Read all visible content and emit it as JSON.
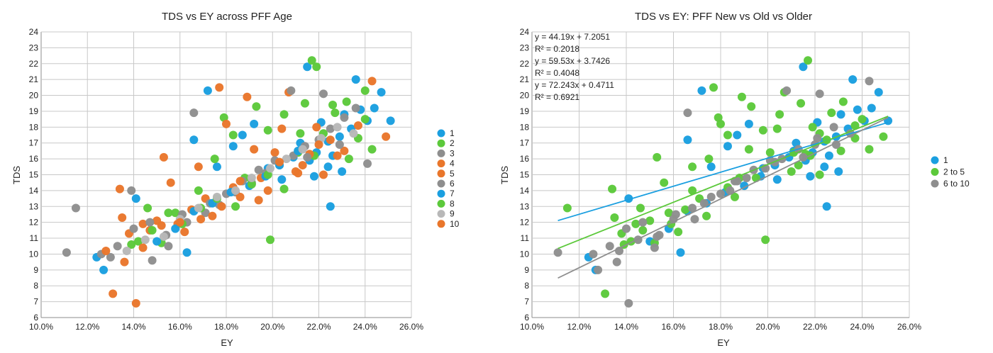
{
  "chart_data": [
    {
      "type": "scatter",
      "title": "TDS vs EY across PFF Age",
      "xlabel": "EY",
      "ylabel": "TDS",
      "xlim": [
        0.1,
        0.26
      ],
      "ylim": [
        6,
        24
      ],
      "x_ticks": [
        "10.0%",
        "12.0%",
        "14.0%",
        "16.0%",
        "18.0%",
        "20.0%",
        "22.0%",
        "24.0%",
        "26.0%"
      ],
      "y_ticks": [
        "6",
        "7",
        "8",
        "9",
        "10",
        "11",
        "12",
        "13",
        "14",
        "15",
        "16",
        "17",
        "18",
        "19",
        "20",
        "21",
        "22",
        "23",
        "24"
      ],
      "grid": true,
      "legend_position": "right",
      "series": [
        {
          "name": "1",
          "color": "#1a9fe0",
          "x": [
            0.124,
            0.127,
            0.141,
            0.163,
            0.166,
            0.172,
            0.176,
            0.183,
            0.187,
            0.192,
            0.198,
            0.204,
            0.209,
            0.212,
            0.216,
            0.219,
            0.221,
            0.224,
            0.226,
            0.229,
            0.231,
            0.234,
            0.238,
            0.241,
            0.247,
            0.251,
            0.215,
            0.225
          ],
          "y": [
            9.8,
            9.0,
            13.5,
            10.1,
            17.2,
            20.3,
            15.5,
            16.8,
            17.5,
            18.2,
            15.4,
            14.7,
            16.1,
            17.0,
            15.9,
            16.4,
            18.3,
            17.1,
            16.2,
            17.4,
            18.8,
            17.9,
            19.1,
            18.4,
            20.2,
            18.4,
            21.8,
            13.0
          ]
        },
        {
          "name": "2",
          "color": "#5cc93b",
          "x": [
            0.139,
            0.142,
            0.146,
            0.152,
            0.158,
            0.168,
            0.175,
            0.179,
            0.183,
            0.188,
            0.193,
            0.199,
            0.205,
            0.211,
            0.214,
            0.217,
            0.222,
            0.227,
            0.232,
            0.237,
            0.24,
            0.243,
            0.198,
            0.218
          ],
          "y": [
            10.6,
            10.8,
            12.9,
            10.7,
            12.6,
            14.0,
            16.0,
            18.6,
            17.5,
            14.8,
            19.3,
            10.9,
            18.8,
            16.4,
            19.5,
            22.2,
            17.6,
            18.9,
            19.6,
            17.3,
            18.5,
            16.6,
            17.8,
            16.2
          ]
        },
        {
          "name": "3",
          "color": "#8e8e8e",
          "x": [
            0.111,
            0.115,
            0.13,
            0.139,
            0.148,
            0.155,
            0.163,
            0.171,
            0.177,
            0.184,
            0.191,
            0.197,
            0.203,
            0.209,
            0.214,
            0.22,
            0.225,
            0.231,
            0.236,
            0.241
          ],
          "y": [
            10.1,
            12.9,
            9.8,
            14.0,
            9.6,
            10.5,
            12.0,
            12.6,
            13.1,
            13.9,
            14.5,
            15.1,
            15.6,
            16.2,
            16.8,
            17.2,
            17.9,
            18.6,
            19.2,
            15.7
          ]
        },
        {
          "name": "4",
          "color": "#e9762b",
          "x": [
            0.131,
            0.135,
            0.141,
            0.147,
            0.153,
            0.159,
            0.165,
            0.171,
            0.177,
            0.183,
            0.189,
            0.195,
            0.201,
            0.207,
            0.213,
            0.219,
            0.225,
            0.231,
            0.237,
            0.243,
            0.249
          ],
          "y": [
            7.5,
            12.3,
            6.9,
            11.5,
            16.1,
            11.9,
            12.8,
            13.5,
            20.5,
            14.2,
            19.9,
            14.8,
            16.4,
            20.2,
            15.6,
            18.0,
            17.2,
            16.5,
            18.1,
            20.9,
            17.4
          ]
        },
        {
          "name": "5",
          "color": "#e9762b",
          "x": [
            0.134,
            0.138,
            0.144,
            0.15,
            0.156,
            0.162,
            0.168,
            0.174,
            0.18,
            0.186,
            0.192,
            0.198,
            0.204,
            0.21,
            0.216,
            0.222
          ],
          "y": [
            14.1,
            11.3,
            11.9,
            12.1,
            14.5,
            11.4,
            15.5,
            12.4,
            18.2,
            13.6,
            16.6,
            14.0,
            17.9,
            15.2,
            16.3,
            15.0
          ]
        },
        {
          "name": "6",
          "color": "#8e8e8e",
          "x": [
            0.126,
            0.133,
            0.14,
            0.147,
            0.154,
            0.161,
            0.166,
            0.173,
            0.18,
            0.187,
            0.194,
            0.201,
            0.208,
            0.215,
            0.222,
            0.229
          ],
          "y": [
            10.0,
            10.5,
            11.6,
            12.0,
            11.2,
            12.5,
            18.9,
            13.2,
            13.8,
            14.6,
            15.3,
            15.9,
            20.3,
            16.1,
            20.1,
            16.9
          ]
        },
        {
          "name": "7",
          "color": "#1a9fe0",
          "x": [
            0.15,
            0.158,
            0.166,
            0.174,
            0.182,
            0.19,
            0.197,
            0.203,
            0.211,
            0.218,
            0.224,
            0.23,
            0.236,
            0.244
          ],
          "y": [
            10.8,
            11.6,
            12.7,
            13.2,
            13.9,
            14.3,
            14.9,
            15.6,
            16.5,
            14.9,
            15.5,
            15.2,
            21.0,
            19.2
          ]
        },
        {
          "name": "8",
          "color": "#5cc93b",
          "x": [
            0.148,
            0.155,
            0.161,
            0.169,
            0.176,
            0.184,
            0.191,
            0.198,
            0.205,
            0.212,
            0.219,
            0.226,
            0.233,
            0.24
          ],
          "y": [
            11.5,
            12.6,
            11.9,
            12.9,
            13.5,
            13.0,
            14.4,
            15.0,
            14.1,
            17.6,
            21.8,
            19.4,
            16.0,
            20.3
          ]
        },
        {
          "name": "9",
          "color": "#b8b8b8",
          "x": [
            0.137,
            0.145,
            0.153,
            0.16,
            0.168,
            0.176,
            0.184,
            0.191,
            0.199,
            0.206,
            0.213,
            0.221,
            0.228,
            0.235
          ],
          "y": [
            10.2,
            10.9,
            11.1,
            12.2,
            12.9,
            13.6,
            14.0,
            14.8,
            15.4,
            16.0,
            16.6,
            17.3,
            18.0,
            17.6
          ]
        },
        {
          "name": "10",
          "color": "#e9762b",
          "x": [
            0.128,
            0.136,
            0.144,
            0.152,
            0.16,
            0.169,
            0.178,
            0.186,
            0.194,
            0.203,
            0.211,
            0.22,
            0.228
          ],
          "y": [
            10.2,
            9.5,
            10.4,
            11.8,
            12.0,
            12.2,
            13.0,
            14.6,
            13.4,
            15.8,
            15.1,
            16.9,
            16.2
          ]
        }
      ]
    },
    {
      "type": "scatter",
      "title": "TDS vs EY: PFF New vs Old vs Older",
      "xlabel": "EY",
      "ylabel": "TDS",
      "xlim": [
        0.1,
        0.26
      ],
      "ylim": [
        6,
        24
      ],
      "x_ticks": [
        "10.0%",
        "12.0%",
        "14.0%",
        "16.0%",
        "18.0%",
        "20.0%",
        "22.0%",
        "24.0%",
        "26.0%"
      ],
      "y_ticks": [
        "6",
        "7",
        "8",
        "9",
        "10",
        "11",
        "12",
        "13",
        "14",
        "15",
        "16",
        "17",
        "18",
        "19",
        "20",
        "21",
        "22",
        "23",
        "24"
      ],
      "grid": true,
      "legend_position": "right",
      "annotations": [
        "y = 44.19x + 7.2051",
        "R² = 0.2018",
        "y = 59.53x + 3.7426",
        "R² = 0.4048",
        "y = 72.243x + 0.4711",
        "R² = 0.6921"
      ],
      "series": [
        {
          "name": "1",
          "color": "#1a9fe0",
          "trendline": {
            "slope": 44.19,
            "intercept": 7.2051,
            "x_range": [
              0.111,
              0.251
            ]
          },
          "x": [
            0.124,
            0.127,
            0.141,
            0.163,
            0.166,
            0.172,
            0.176,
            0.183,
            0.187,
            0.192,
            0.198,
            0.204,
            0.209,
            0.212,
            0.216,
            0.219,
            0.221,
            0.224,
            0.226,
            0.229,
            0.231,
            0.234,
            0.238,
            0.241,
            0.247,
            0.251,
            0.215,
            0.225,
            0.15,
            0.158,
            0.166,
            0.174,
            0.182,
            0.19,
            0.197,
            0.203,
            0.211,
            0.218,
            0.224,
            0.23,
            0.236,
            0.244
          ],
          "y": [
            9.8,
            9.0,
            13.5,
            10.1,
            17.2,
            20.3,
            15.5,
            16.8,
            17.5,
            18.2,
            15.4,
            14.7,
            16.1,
            17.0,
            15.9,
            16.4,
            18.3,
            17.1,
            16.2,
            17.4,
            18.8,
            17.9,
            19.1,
            18.4,
            20.2,
            18.4,
            21.8,
            13.0,
            10.8,
            11.6,
            12.7,
            13.2,
            13.9,
            14.3,
            14.9,
            15.6,
            16.5,
            14.9,
            15.5,
            15.2,
            21.0,
            19.2
          ]
        },
        {
          "name": "2 to 5",
          "color": "#5cc93b",
          "trendline": {
            "slope": 59.53,
            "intercept": 3.7426,
            "x_range": [
              0.111,
              0.251
            ]
          },
          "x": [
            0.139,
            0.142,
            0.146,
            0.152,
            0.158,
            0.168,
            0.175,
            0.179,
            0.183,
            0.188,
            0.193,
            0.199,
            0.205,
            0.211,
            0.214,
            0.217,
            0.222,
            0.227,
            0.232,
            0.237,
            0.24,
            0.243,
            0.198,
            0.218,
            0.131,
            0.135,
            0.147,
            0.153,
            0.159,
            0.165,
            0.171,
            0.177,
            0.183,
            0.189,
            0.195,
            0.201,
            0.207,
            0.213,
            0.219,
            0.225,
            0.231,
            0.237,
            0.249,
            0.134,
            0.138,
            0.144,
            0.15,
            0.156,
            0.162,
            0.168,
            0.174,
            0.18,
            0.186,
            0.192,
            0.204,
            0.21,
            0.216,
            0.222,
            0.115
          ],
          "y": [
            10.6,
            10.8,
            12.9,
            10.7,
            12.6,
            14.0,
            16.0,
            18.6,
            17.5,
            14.8,
            19.3,
            10.9,
            18.8,
            16.4,
            19.5,
            22.2,
            17.6,
            18.9,
            19.6,
            17.3,
            18.5,
            16.6,
            17.8,
            16.2,
            7.5,
            12.3,
            11.5,
            16.1,
            11.9,
            12.8,
            13.5,
            20.5,
            14.2,
            19.9,
            14.8,
            16.4,
            20.2,
            15.6,
            18.0,
            17.2,
            16.5,
            18.1,
            17.4,
            14.1,
            11.3,
            11.9,
            12.1,
            14.5,
            11.4,
            15.5,
            12.4,
            18.2,
            13.6,
            16.6,
            17.9,
            15.2,
            16.3,
            15.0,
            12.9
          ]
        },
        {
          "name": "6 to 10",
          "color": "#8e8e8e",
          "trendline": {
            "slope": 72.243,
            "intercept": 0.4711,
            "x_range": [
              0.111,
              0.251
            ]
          },
          "x": [
            0.111,
            0.126,
            0.133,
            0.14,
            0.147,
            0.154,
            0.161,
            0.166,
            0.173,
            0.18,
            0.187,
            0.194,
            0.201,
            0.208,
            0.215,
            0.222,
            0.229,
            0.137,
            0.145,
            0.153,
            0.16,
            0.168,
            0.176,
            0.184,
            0.191,
            0.199,
            0.206,
            0.213,
            0.221,
            0.228,
            0.235,
            0.128,
            0.136,
            0.141,
            0.152,
            0.169,
            0.186,
            0.203,
            0.22,
            0.243
          ],
          "y": [
            10.1,
            10.0,
            10.5,
            11.6,
            12.0,
            11.2,
            12.5,
            18.9,
            13.2,
            13.8,
            14.6,
            15.3,
            15.9,
            20.3,
            16.1,
            20.1,
            16.9,
            10.2,
            10.9,
            11.1,
            12.2,
            12.9,
            13.6,
            14.0,
            14.8,
            15.4,
            16.0,
            16.6,
            17.3,
            18.0,
            17.6,
            9.0,
            9.5,
            6.9,
            10.4,
            12.2,
            14.6,
            15.8,
            16.9,
            20.9
          ]
        }
      ]
    }
  ]
}
